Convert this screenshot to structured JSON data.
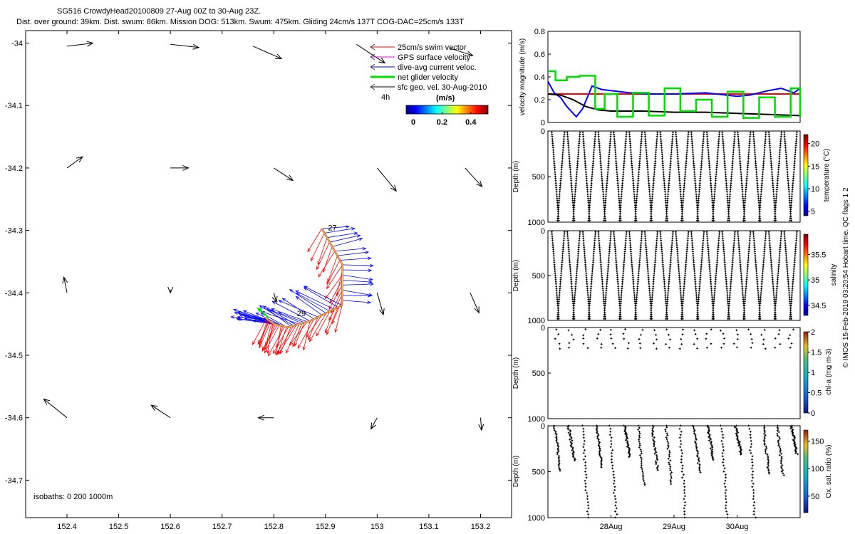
{
  "header": {
    "title_line1": "SG516 CrowdyHead20100809 27-Aug 00Z to 30-Aug 23Z.",
    "title_line2": "Dist. over ground: 39km. Dist. swum: 86km. Mission DOG: 513km. Swum: 475km. Gliding 24cm/s 137T COG-DAC=25cm/s 133T"
  },
  "side_note": "© IMOS 15-Feb-2019 03:20:54 Hobart time. QC flags 1  2",
  "colors": {
    "swim": "#ff0000",
    "gps": "#ff00ff",
    "dac": "#0000ff",
    "net": "#00dd00",
    "sfc": "#000000",
    "track": "#b35a1f"
  },
  "chart_data": [
    {
      "type": "scatter",
      "id": "map",
      "xlim": [
        152.32,
        153.26
      ],
      "ylim": [
        -34.76,
        -33.98
      ],
      "xticks": [
        "152.4",
        "152.5",
        "152.6",
        "152.7",
        "152.8",
        "152.9",
        "153",
        "153.1",
        "153.2"
      ],
      "xtick_values": [
        152.4,
        152.5,
        152.6,
        152.7,
        152.8,
        152.9,
        153.0,
        153.1,
        153.2
      ],
      "yticks": [
        "-34",
        "-34.1",
        "-34.2",
        "-34.3",
        "-34.4",
        "-34.5",
        "-34.6",
        "-34.7"
      ],
      "ytick_values": [
        -34.0,
        -34.1,
        -34.2,
        -34.3,
        -34.4,
        -34.5,
        -34.6,
        -34.7
      ],
      "legend": [
        {
          "label": "25cm/s swim vector",
          "color": "#ff0000"
        },
        {
          "label": "GPS surface velocity",
          "color": "#ff00ff"
        },
        {
          "label": "dive-avg current veloc.",
          "color": "#0000ff"
        },
        {
          "label": "net glider velocity",
          "color": "#00dd00"
        },
        {
          "label": "sfc geo. vel. 30-Aug-2010",
          "color": "#000000"
        }
      ],
      "legend_4h": "4h",
      "colorbar": {
        "title": "(m/s)",
        "ticks": [
          "0",
          "0.2",
          "0.4"
        ],
        "tick_values": [
          0,
          0.2,
          0.4
        ],
        "range": [
          -0.05,
          0.52
        ]
      },
      "isobaths_label": "isobaths: 0   200  1000m",
      "track": {
        "lon": [
          152.893,
          152.933,
          152.932,
          152.87,
          152.828,
          152.8,
          152.784
        ],
        "lat": [
          -34.297,
          -34.355,
          -34.42,
          -34.445,
          -34.455,
          -34.45,
          -34.44
        ]
      },
      "day_labels": [
        {
          "text": "27",
          "lon": 152.905,
          "lat": -34.3
        },
        {
          "text": "29",
          "lon": 152.845,
          "lat": -34.437
        }
      ],
      "sfc_vectors": [
        {
          "lon": 152.4,
          "lat": -34.005,
          "dlon": 0.05,
          "dlat": 0.005
        },
        {
          "lon": 152.6,
          "lat": -34.002,
          "dlon": 0.055,
          "dlat": -0.005
        },
        {
          "lon": 152.76,
          "lat": -34.005,
          "dlon": 0.055,
          "dlat": -0.02
        },
        {
          "lon": 152.96,
          "lat": -34.002,
          "dlon": 0.055,
          "dlat": -0.03
        },
        {
          "lon": 153.14,
          "lat": -34.008,
          "dlon": 0.045,
          "dlat": -0.012
        },
        {
          "lon": 152.4,
          "lat": -34.2,
          "dlon": 0.03,
          "dlat": 0.018
        },
        {
          "lon": 152.6,
          "lat": -34.2,
          "dlon": 0.035,
          "dlat": 0.0
        },
        {
          "lon": 152.8,
          "lat": -34.2,
          "dlon": 0.037,
          "dlat": -0.02
        },
        {
          "lon": 153.0,
          "lat": -34.2,
          "dlon": 0.037,
          "dlat": -0.037
        },
        {
          "lon": 153.17,
          "lat": -34.2,
          "dlon": 0.033,
          "dlat": -0.03
        },
        {
          "lon": 152.4,
          "lat": -34.4,
          "dlon": -0.006,
          "dlat": 0.025
        },
        {
          "lon": 152.6,
          "lat": -34.395,
          "dlon": 0.0,
          "dlat": -0.005
        },
        {
          "lon": 152.8,
          "lat": -34.4,
          "dlon": 0.005,
          "dlat": -0.015
        },
        {
          "lon": 153.0,
          "lat": -34.4,
          "dlon": 0.012,
          "dlat": -0.035
        },
        {
          "lon": 153.18,
          "lat": -34.4,
          "dlon": 0.017,
          "dlat": -0.032
        },
        {
          "lon": 152.4,
          "lat": -34.6,
          "dlon": -0.045,
          "dlat": 0.03
        },
        {
          "lon": 152.6,
          "lat": -34.6,
          "dlon": -0.037,
          "dlat": 0.02
        },
        {
          "lon": 152.8,
          "lat": -34.6,
          "dlon": -0.03,
          "dlat": 0.0
        },
        {
          "lon": 153.0,
          "lat": -34.6,
          "dlon": -0.012,
          "dlat": -0.018
        },
        {
          "lon": 153.2,
          "lat": -34.6,
          "dlon": 0.002,
          "dlat": -0.02
        }
      ]
    },
    {
      "type": "line",
      "id": "velocity",
      "ylabel": "velocity magnitude (m/s)",
      "ylim": [
        0,
        0.8
      ],
      "yticks": [
        "0",
        "0.2",
        "0.4",
        "0.6",
        "0.8"
      ],
      "tick_values": [
        0,
        0.2,
        0.4,
        0.6,
        0.8
      ],
      "xlim": [
        27.0,
        31.0
      ],
      "series": [
        {
          "color": "#ff0000",
          "x": [
            27.0,
            31.0
          ],
          "y": [
            0.25,
            0.25
          ]
        },
        {
          "color": "#0000ff",
          "x": [
            27.0,
            27.1,
            27.2,
            27.3,
            27.45,
            27.55,
            27.7,
            27.85,
            28.0,
            28.3,
            28.6,
            29.0,
            29.5,
            30.0,
            30.2,
            30.5,
            30.7,
            30.9,
            31.0
          ],
          "y": [
            0.36,
            0.26,
            0.22,
            0.14,
            0.05,
            0.12,
            0.32,
            0.29,
            0.28,
            0.26,
            0.25,
            0.25,
            0.26,
            0.23,
            0.24,
            0.28,
            0.3,
            0.26,
            0.3
          ]
        },
        {
          "color": "#000000",
          "x": [
            27.0,
            27.2,
            27.4,
            27.6,
            27.8,
            28.0,
            28.5,
            29.0,
            29.5,
            30.0,
            30.5,
            31.0
          ],
          "y": [
            0.25,
            0.24,
            0.2,
            0.14,
            0.11,
            0.1,
            0.1,
            0.09,
            0.09,
            0.08,
            0.07,
            0.06
          ]
        },
        {
          "color": "#00dd00",
          "step": true,
          "x": [
            27.0,
            27.12,
            27.3,
            27.5,
            27.75,
            27.9,
            28.1,
            28.35,
            28.6,
            28.85,
            29.1,
            29.35,
            29.6,
            29.85,
            30.1,
            30.35,
            30.6,
            30.85,
            31.0
          ],
          "y": [
            0.45,
            0.37,
            0.4,
            0.41,
            0.12,
            0.25,
            0.05,
            0.26,
            0.06,
            0.3,
            0.1,
            0.2,
            0.05,
            0.27,
            0.04,
            0.22,
            0.05,
            0.3,
            0.05
          ]
        }
      ]
    },
    {
      "type": "scatter",
      "id": "temperature",
      "ylabel": "Depth (m)",
      "ylim": [
        1000,
        0
      ],
      "yticks": [
        "0",
        "500",
        "1000"
      ],
      "tick_values": [
        0,
        500,
        1000
      ],
      "colorbar": {
        "label": "temperature (°C)",
        "ticks": [
          "5",
          "10",
          "15",
          "20"
        ],
        "tick_values": [
          5,
          10,
          15,
          20
        ],
        "range": [
          4,
          22
        ]
      },
      "profile": {
        "dives": 16,
        "max_depth": 1000
      }
    },
    {
      "type": "scatter",
      "id": "salinity",
      "ylabel": "Depth (m)",
      "ylim": [
        1000,
        0
      ],
      "yticks": [
        "0",
        "500",
        "1000"
      ],
      "tick_values": [
        0,
        500,
        1000
      ],
      "colorbar": {
        "label": "salinity",
        "ticks": [
          "34.5",
          "35",
          "35.5"
        ],
        "tick_values": [
          34.5,
          35.0,
          35.5
        ],
        "range": [
          34.3,
          35.9
        ]
      },
      "profile": {
        "dives": 16,
        "max_depth": 1000
      }
    },
    {
      "type": "scatter",
      "id": "chla",
      "ylabel": "Depth (m)",
      "ylim": [
        1000,
        0
      ],
      "yticks": [
        "0",
        "500",
        "1000"
      ],
      "tick_values": [
        0,
        500,
        1000
      ],
      "colorbar": {
        "label": "chl-a (mg m-3)",
        "ticks": [
          "0",
          "0.5",
          "1",
          "1.5",
          "2"
        ],
        "tick_values": [
          0,
          0.5,
          1,
          1.5,
          2
        ],
        "range": [
          0,
          2
        ]
      },
      "profile": {
        "max_depth": 250
      }
    },
    {
      "type": "scatter",
      "id": "oxygen",
      "ylabel": "Depth (m)",
      "ylim": [
        1000,
        0
      ],
      "yticks": [
        "0",
        "500",
        "1000"
      ],
      "tick_values": [
        0,
        500,
        1000
      ],
      "xticks": [
        "28Aug",
        "29Aug",
        "30Aug"
      ],
      "xtick_values": [
        28,
        29,
        30
      ],
      "colorbar": {
        "label": "Ox. sat. ratio (%)",
        "ticks": [
          "50",
          "100",
          "150"
        ],
        "tick_values": [
          50,
          100,
          150
        ],
        "range": [
          20,
          170
        ]
      },
      "profile": {
        "max_depth": 1000
      }
    }
  ]
}
